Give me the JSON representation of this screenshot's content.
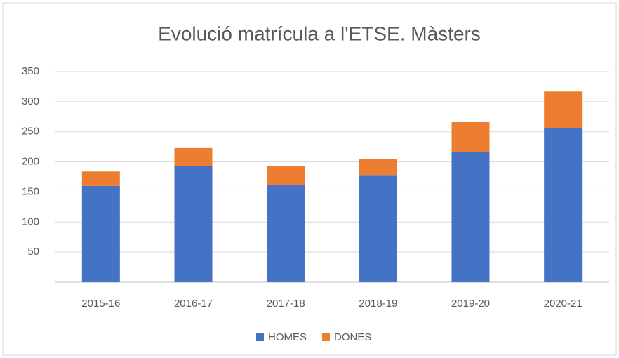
{
  "chart_data": {
    "type": "bar",
    "stacked": true,
    "title": "Evolució matrícula a l'ETSE. Màsters",
    "categories": [
      "2015-16",
      "2016-17",
      "2017-18",
      "2018-19",
      "2019-20",
      "2020-21"
    ],
    "series": [
      {
        "name": "HOMES",
        "color": "#4472c4",
        "values": [
          160,
          193,
          162,
          177,
          217,
          256
        ]
      },
      {
        "name": "DONES",
        "color": "#ed7d31",
        "values": [
          24,
          30,
          31,
          28,
          49,
          61
        ]
      }
    ],
    "ylim": [
      0,
      350
    ],
    "yticks": [
      50,
      100,
      150,
      200,
      250,
      300,
      350
    ],
    "grid": true,
    "legend": "bottom"
  }
}
